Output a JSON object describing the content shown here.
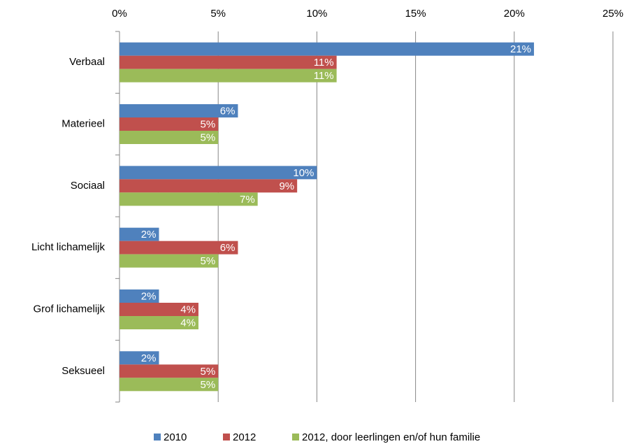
{
  "chart_data": {
    "type": "bar",
    "orientation": "horizontal",
    "categories": [
      "Verbaal",
      "Materieel",
      "Sociaal",
      "Licht lichamelijk",
      "Grof lichamelijk",
      "Seksueel"
    ],
    "series": [
      {
        "name": "2010",
        "color": "#4f81bd",
        "values": [
          21,
          6,
          10,
          2,
          2,
          2
        ],
        "value_labels": [
          "21%",
          "6%",
          "10%",
          "2%",
          "2%",
          "2%"
        ]
      },
      {
        "name": "2012",
        "color": "#c0504d",
        "values": [
          11,
          5,
          9,
          6,
          4,
          5
        ],
        "value_labels": [
          "11%",
          "5%",
          "9%",
          "6%",
          "4%",
          "5%"
        ]
      },
      {
        "name": "2012, door leerlingen en/of hun familie",
        "color": "#9bbb59",
        "values": [
          11,
          5,
          7,
          5,
          4,
          5
        ],
        "value_labels": [
          "11%",
          "5%",
          "7%",
          "5%",
          "4%",
          "5%"
        ]
      }
    ],
    "xlim": [
      0,
      25
    ],
    "xticks": [
      {
        "value": 0,
        "label": "0%"
      },
      {
        "value": 5,
        "label": "5%"
      },
      {
        "value": 10,
        "label": "10%"
      },
      {
        "value": 15,
        "label": "15%"
      },
      {
        "value": 20,
        "label": "20%"
      },
      {
        "value": 25,
        "label": "25%"
      }
    ],
    "grid": true,
    "legend": "bottom"
  }
}
